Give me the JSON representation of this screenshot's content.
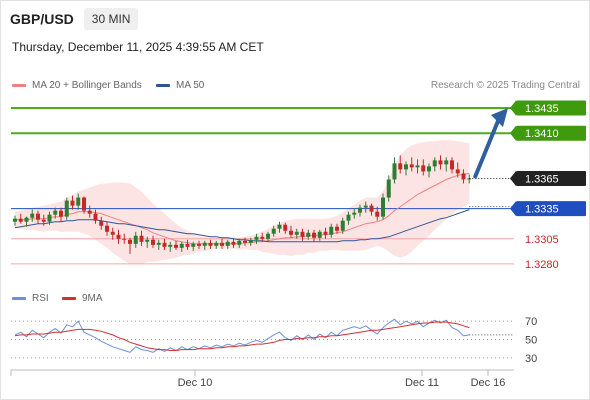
{
  "header": {
    "symbol": "GBP/USD",
    "timeframe": "30 MIN"
  },
  "timestamp": "Thursday, December 11, 2025 4:39:55 AM CET",
  "legend": {
    "bollinger_label": "MA 20 + Bollinger Bands",
    "ma50_label": "MA 50",
    "credit": "Research © 2025 Trading Central"
  },
  "rsi_legend": {
    "rsi_label": "RSI",
    "ma_label": "9MA"
  },
  "colors": {
    "up": "#2e7d32",
    "down": "#c62828",
    "ma20": "#f08080",
    "ma50": "#2f5597",
    "band_fill": "#fde4e4",
    "resistance": "#4caf1a",
    "support": "#f4a6a6",
    "current": "#222222",
    "pivot": "#1f4fbf",
    "arrow": "#2f5fa0",
    "rsi": "#6f8fd8",
    "rsi_ma": "#d03030"
  },
  "chart_data": [
    {
      "type": "candlestick",
      "title": "GBP/USD",
      "ylim": [
        1.3268,
        1.3445
      ],
      "levels": [
        {
          "value": 1.3435,
          "label": "1.3435",
          "kind": "resistance"
        },
        {
          "value": 1.341,
          "label": "1.3410",
          "kind": "resistance"
        },
        {
          "value": 1.3365,
          "label": "1.3365",
          "kind": "current"
        },
        {
          "value": 1.3335,
          "label": "1.3335",
          "kind": "pivot"
        },
        {
          "value": 1.3305,
          "label": "1.3305",
          "kind": "support"
        },
        {
          "value": 1.328,
          "label": "1.3280",
          "kind": "support"
        }
      ],
      "x_labels": [
        "Dec 10",
        "Dec 11",
        "Dec 16"
      ],
      "candles": [
        [
          1.3322,
          1.3328,
          1.3318,
          1.3325
        ],
        [
          1.3325,
          1.333,
          1.332,
          1.3322
        ],
        [
          1.3322,
          1.3327,
          1.3317,
          1.3326
        ],
        [
          1.3326,
          1.3334,
          1.3322,
          1.333
        ],
        [
          1.333,
          1.3333,
          1.332,
          1.3324
        ],
        [
          1.3324,
          1.3329,
          1.3318,
          1.3322
        ],
        [
          1.3322,
          1.3332,
          1.3319,
          1.3329
        ],
        [
          1.3329,
          1.3336,
          1.3325,
          1.3333
        ],
        [
          1.3333,
          1.3336,
          1.3322,
          1.3327
        ],
        [
          1.3327,
          1.3346,
          1.3324,
          1.3343
        ],
        [
          1.3343,
          1.3348,
          1.3334,
          1.3338
        ],
        [
          1.3338,
          1.335,
          1.3334,
          1.3346
        ],
        [
          1.3346,
          1.3347,
          1.333,
          1.3333
        ],
        [
          1.3333,
          1.3338,
          1.3326,
          1.333
        ],
        [
          1.333,
          1.3334,
          1.332,
          1.3323
        ],
        [
          1.3323,
          1.3327,
          1.3314,
          1.3318
        ],
        [
          1.3318,
          1.3322,
          1.3308,
          1.3312
        ],
        [
          1.3312,
          1.3316,
          1.3304,
          1.3309
        ],
        [
          1.3309,
          1.3314,
          1.33,
          1.3305
        ],
        [
          1.3305,
          1.331,
          1.33,
          1.3304
        ],
        [
          1.3304,
          1.3306,
          1.329,
          1.33
        ],
        [
          1.33,
          1.3312,
          1.3296,
          1.3308
        ],
        [
          1.3308,
          1.3313,
          1.3298,
          1.3302
        ],
        [
          1.3302,
          1.3307,
          1.3296,
          1.3304
        ],
        [
          1.3304,
          1.3308,
          1.3296,
          1.3299
        ],
        [
          1.3299,
          1.3304,
          1.3294,
          1.3301
        ],
        [
          1.3301,
          1.3305,
          1.3294,
          1.3297
        ],
        [
          1.3297,
          1.3302,
          1.3292,
          1.3299
        ],
        [
          1.3299,
          1.3303,
          1.3294,
          1.3296
        ],
        [
          1.3296,
          1.3302,
          1.3292,
          1.33
        ],
        [
          1.33,
          1.3304,
          1.3294,
          1.3297
        ],
        [
          1.3297,
          1.3302,
          1.3293,
          1.33
        ],
        [
          1.33,
          1.3303,
          1.3295,
          1.3298
        ],
        [
          1.3298,
          1.3303,
          1.3294,
          1.3301
        ],
        [
          1.3301,
          1.3304,
          1.3295,
          1.3298
        ],
        [
          1.3298,
          1.3303,
          1.3295,
          1.3301
        ],
        [
          1.3301,
          1.3305,
          1.3295,
          1.3298
        ],
        [
          1.3298,
          1.3304,
          1.3295,
          1.3302
        ],
        [
          1.3302,
          1.3305,
          1.3296,
          1.3299
        ],
        [
          1.3299,
          1.3305,
          1.3296,
          1.3303
        ],
        [
          1.3303,
          1.3306,
          1.3298,
          1.3301
        ],
        [
          1.3301,
          1.3306,
          1.3298,
          1.3304
        ],
        [
          1.3304,
          1.331,
          1.33,
          1.3307
        ],
        [
          1.3307,
          1.3311,
          1.3302,
          1.3305
        ],
        [
          1.3305,
          1.3312,
          1.3302,
          1.331
        ],
        [
          1.331,
          1.3318,
          1.3307,
          1.3315
        ],
        [
          1.3315,
          1.3322,
          1.3311,
          1.3319
        ],
        [
          1.3319,
          1.3321,
          1.331,
          1.3313
        ],
        [
          1.3313,
          1.3318,
          1.3306,
          1.3309
        ],
        [
          1.3309,
          1.3315,
          1.3305,
          1.3312
        ],
        [
          1.3312,
          1.3315,
          1.3303,
          1.3307
        ],
        [
          1.3307,
          1.3314,
          1.3304,
          1.3311
        ],
        [
          1.3311,
          1.3314,
          1.3302,
          1.3306
        ],
        [
          1.3306,
          1.3314,
          1.3303,
          1.3312
        ],
        [
          1.3312,
          1.3316,
          1.3305,
          1.3309
        ],
        [
          1.3309,
          1.332,
          1.3306,
          1.3317
        ],
        [
          1.3317,
          1.332,
          1.331,
          1.3313
        ],
        [
          1.3313,
          1.3326,
          1.331,
          1.3323
        ],
        [
          1.3323,
          1.3332,
          1.3319,
          1.3329
        ],
        [
          1.3329,
          1.3335,
          1.3325,
          1.3331
        ],
        [
          1.3331,
          1.3339,
          1.3327,
          1.3336
        ],
        [
          1.3336,
          1.3342,
          1.3331,
          1.3338
        ],
        [
          1.3338,
          1.334,
          1.3328,
          1.3332
        ],
        [
          1.3332,
          1.3337,
          1.3323,
          1.3327
        ],
        [
          1.3327,
          1.335,
          1.3324,
          1.3346
        ],
        [
          1.3346,
          1.3368,
          1.3342,
          1.3364
        ],
        [
          1.3364,
          1.3386,
          1.336,
          1.338
        ],
        [
          1.338,
          1.3388,
          1.337,
          1.3374
        ],
        [
          1.3374,
          1.3382,
          1.3368,
          1.3379
        ],
        [
          1.3379,
          1.3386,
          1.3372,
          1.3376
        ],
        [
          1.3376,
          1.3384,
          1.337,
          1.3378
        ],
        [
          1.3378,
          1.3384,
          1.3368,
          1.3372
        ],
        [
          1.3372,
          1.338,
          1.3366,
          1.3377
        ],
        [
          1.3377,
          1.3386,
          1.3372,
          1.3383
        ],
        [
          1.3383,
          1.3388,
          1.3374,
          1.3379
        ],
        [
          1.3379,
          1.3386,
          1.3372,
          1.3383
        ],
        [
          1.3383,
          1.3386,
          1.337,
          1.3374
        ],
        [
          1.3374,
          1.3381,
          1.3366,
          1.337
        ],
        [
          1.337,
          1.3374,
          1.336,
          1.3364
        ],
        [
          1.3364,
          1.3369,
          1.336,
          1.3365
        ]
      ],
      "bollinger": {
        "middle": [
          1.3324,
          1.3324,
          1.3324,
          1.3325,
          1.3325,
          1.3325,
          1.3326,
          1.3327,
          1.3327,
          1.3329,
          1.333,
          1.3332,
          1.3332,
          1.3332,
          1.3331,
          1.333,
          1.3328,
          1.3326,
          1.3324,
          1.3322,
          1.332,
          1.3318,
          1.3316,
          1.3314,
          1.3311,
          1.3309,
          1.3307,
          1.3305,
          1.3303,
          1.3302,
          1.3301,
          1.33,
          1.33,
          1.33,
          1.33,
          1.33,
          1.33,
          1.33,
          1.33,
          1.33,
          1.3301,
          1.3301,
          1.3302,
          1.3302,
          1.3303,
          1.3304,
          1.3305,
          1.3306,
          1.3306,
          1.3307,
          1.3307,
          1.3308,
          1.3308,
          1.3309,
          1.3309,
          1.331,
          1.3311,
          1.3312,
          1.3314,
          1.3316,
          1.3318,
          1.332,
          1.3321,
          1.3322,
          1.3324,
          1.3328,
          1.3333,
          1.3337,
          1.3341,
          1.3345,
          1.3349,
          1.3352,
          1.3355,
          1.3358,
          1.3361,
          1.3364,
          1.3366,
          1.3368,
          1.3369,
          1.337
        ],
        "upper": [
          1.3332,
          1.3333,
          1.3334,
          1.3336,
          1.3337,
          1.3338,
          1.3339,
          1.3341,
          1.3342,
          1.3346,
          1.3348,
          1.3352,
          1.3354,
          1.3356,
          1.3358,
          1.336,
          1.336,
          1.3361,
          1.3361,
          1.3361,
          1.336,
          1.3356,
          1.3352,
          1.3346,
          1.334,
          1.3335,
          1.333,
          1.3325,
          1.332,
          1.3316,
          1.3313,
          1.331,
          1.3308,
          1.3307,
          1.3306,
          1.3305,
          1.3305,
          1.3305,
          1.3305,
          1.3306,
          1.3307,
          1.3308,
          1.331,
          1.3312,
          1.3315,
          1.3318,
          1.3321,
          1.3323,
          1.3324,
          1.3325,
          1.3325,
          1.3325,
          1.3325,
          1.3325,
          1.3325,
          1.3326,
          1.3328,
          1.3331,
          1.3335,
          1.3339,
          1.3343,
          1.3346,
          1.3346,
          1.3346,
          1.3352,
          1.3364,
          1.3378,
          1.3388,
          1.3394,
          1.3398,
          1.34,
          1.3401,
          1.3402,
          1.3402,
          1.3403,
          1.3403,
          1.3403,
          1.3402,
          1.3401,
          1.34
        ],
        "lower": [
          1.3316,
          1.3315,
          1.3314,
          1.3314,
          1.3313,
          1.3312,
          1.3313,
          1.3313,
          1.3312,
          1.3312,
          1.3312,
          1.3312,
          1.331,
          1.3308,
          1.3304,
          1.33,
          1.3296,
          1.3291,
          1.3287,
          1.3283,
          1.328,
          1.328,
          1.328,
          1.3282,
          1.3282,
          1.3283,
          1.3284,
          1.3285,
          1.3286,
          1.3288,
          1.3289,
          1.329,
          1.3292,
          1.3293,
          1.3294,
          1.3295,
          1.3295,
          1.3295,
          1.3295,
          1.3294,
          1.3295,
          1.3294,
          1.3294,
          1.3292,
          1.3291,
          1.329,
          1.3289,
          1.3289,
          1.3288,
          1.3289,
          1.3289,
          1.3291,
          1.3291,
          1.3293,
          1.3293,
          1.3294,
          1.3294,
          1.3293,
          1.3293,
          1.3293,
          1.3293,
          1.3294,
          1.3296,
          1.3298,
          1.3296,
          1.3292,
          1.3288,
          1.3286,
          1.3288,
          1.3292,
          1.3298,
          1.3303,
          1.3308,
          1.3314,
          1.3319,
          1.3325,
          1.3329,
          1.3334,
          1.3337,
          1.334
        ]
      },
      "ma50": [
        1.3316,
        1.3317,
        1.3318,
        1.3319,
        1.332,
        1.332,
        1.3321,
        1.3322,
        1.3322,
        1.3323,
        1.3323,
        1.3324,
        1.3324,
        1.3324,
        1.3324,
        1.3323,
        1.3322,
        1.3321,
        1.332,
        1.332,
        1.3319,
        1.3318,
        1.3317,
        1.3316,
        1.3315,
        1.3314,
        1.3314,
        1.3313,
        1.3312,
        1.3311,
        1.331,
        1.331,
        1.3309,
        1.3308,
        1.3307,
        1.3307,
        1.3306,
        1.3306,
        1.3305,
        1.3304,
        1.3304,
        1.3303,
        1.3303,
        1.3303,
        1.3302,
        1.3302,
        1.3302,
        1.3302,
        1.3302,
        1.3302,
        1.3302,
        1.3302,
        1.3302,
        1.3302,
        1.3302,
        1.3302,
        1.3302,
        1.3303,
        1.3303,
        1.3303,
        1.3304,
        1.3304,
        1.3305,
        1.3305,
        1.3306,
        1.3307,
        1.3309,
        1.3311,
        1.3313,
        1.3315,
        1.3317,
        1.3319,
        1.3321,
        1.3323,
        1.3325,
        1.3326,
        1.3328,
        1.333,
        1.3332,
        1.3334
      ],
      "projection": {
        "from": 1.3365,
        "to": 1.3435
      }
    },
    {
      "type": "line",
      "ylim": [
        20,
        80
      ],
      "y_ticks": [
        70,
        50,
        30
      ],
      "series": [
        {
          "name": "RSI",
          "values": [
            55,
            58,
            53,
            60,
            56,
            52,
            58,
            62,
            57,
            66,
            64,
            70,
            58,
            55,
            52,
            48,
            45,
            42,
            40,
            38,
            36,
            42,
            39,
            38,
            36,
            40,
            37,
            41,
            38,
            42,
            39,
            42,
            40,
            43,
            41,
            44,
            42,
            45,
            43,
            46,
            44,
            47,
            49,
            47,
            51,
            55,
            58,
            52,
            49,
            54,
            50,
            55,
            50,
            56,
            52,
            58,
            54,
            60,
            62,
            64,
            62,
            65,
            60,
            56,
            63,
            68,
            72,
            66,
            70,
            67,
            70,
            64,
            68,
            71,
            68,
            71,
            63,
            60,
            54,
            55
          ]
        },
        {
          "name": "9MA",
          "values": [
            54,
            55,
            55,
            56,
            56,
            56,
            57,
            58,
            58,
            59,
            60,
            61,
            61,
            61,
            60,
            59,
            57,
            55,
            52,
            50,
            47,
            45,
            43,
            41,
            40,
            39,
            39,
            38,
            38,
            39,
            39,
            39,
            40,
            40,
            40,
            41,
            41,
            42,
            42,
            43,
            43,
            44,
            45,
            45,
            46,
            47,
            49,
            50,
            50,
            51,
            51,
            52,
            52,
            53,
            53,
            54,
            54,
            55,
            56,
            57,
            58,
            59,
            60,
            60,
            61,
            62,
            63,
            64,
            65,
            66,
            67,
            68,
            68,
            69,
            69,
            69,
            68,
            67,
            65,
            63
          ]
        }
      ]
    }
  ]
}
